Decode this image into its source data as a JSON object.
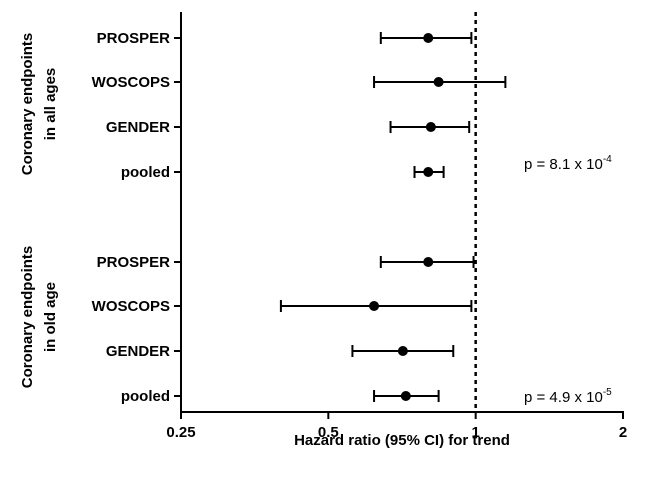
{
  "chart_data": {
    "type": "forest",
    "xlabel": "Hazard ratio (95% CI) for trend",
    "xscale": "log",
    "xlim": [
      0.25,
      2
    ],
    "xticks": [
      {
        "value": 0.25,
        "label": "0.25"
      },
      {
        "value": 0.5,
        "label": "0.5"
      },
      {
        "value": 1,
        "label": "1"
      },
      {
        "value": 2,
        "label": "2"
      }
    ],
    "reference_line": 1,
    "groups": [
      {
        "label_line1": "Coronary endpoints",
        "label_line2": "in all ages",
        "p_value": {
          "base": "p = 8.1 x 10",
          "exponent": "-4"
        },
        "rows": [
          {
            "label": "PROSPER",
            "hr": 0.8,
            "lo": 0.64,
            "hi": 0.98
          },
          {
            "label": "WOSCOPS",
            "hr": 0.84,
            "lo": 0.62,
            "hi": 1.15
          },
          {
            "label": "GENDER",
            "hr": 0.81,
            "lo": 0.67,
            "hi": 0.97
          },
          {
            "label": "pooled",
            "hr": 0.8,
            "lo": 0.75,
            "hi": 0.86
          }
        ]
      },
      {
        "label_line1": "Coronary endpoints",
        "label_line2": "in old age",
        "p_value": {
          "base": "p = 4.9 x 10",
          "exponent": "-5"
        },
        "rows": [
          {
            "label": "PROSPER",
            "hr": 0.8,
            "lo": 0.64,
            "hi": 0.99
          },
          {
            "label": "WOSCOPS",
            "hr": 0.62,
            "lo": 0.4,
            "hi": 0.98
          },
          {
            "label": "GENDER",
            "hr": 0.71,
            "lo": 0.56,
            "hi": 0.9
          },
          {
            "label": "pooled",
            "hr": 0.72,
            "lo": 0.62,
            "hi": 0.84
          }
        ]
      }
    ]
  }
}
